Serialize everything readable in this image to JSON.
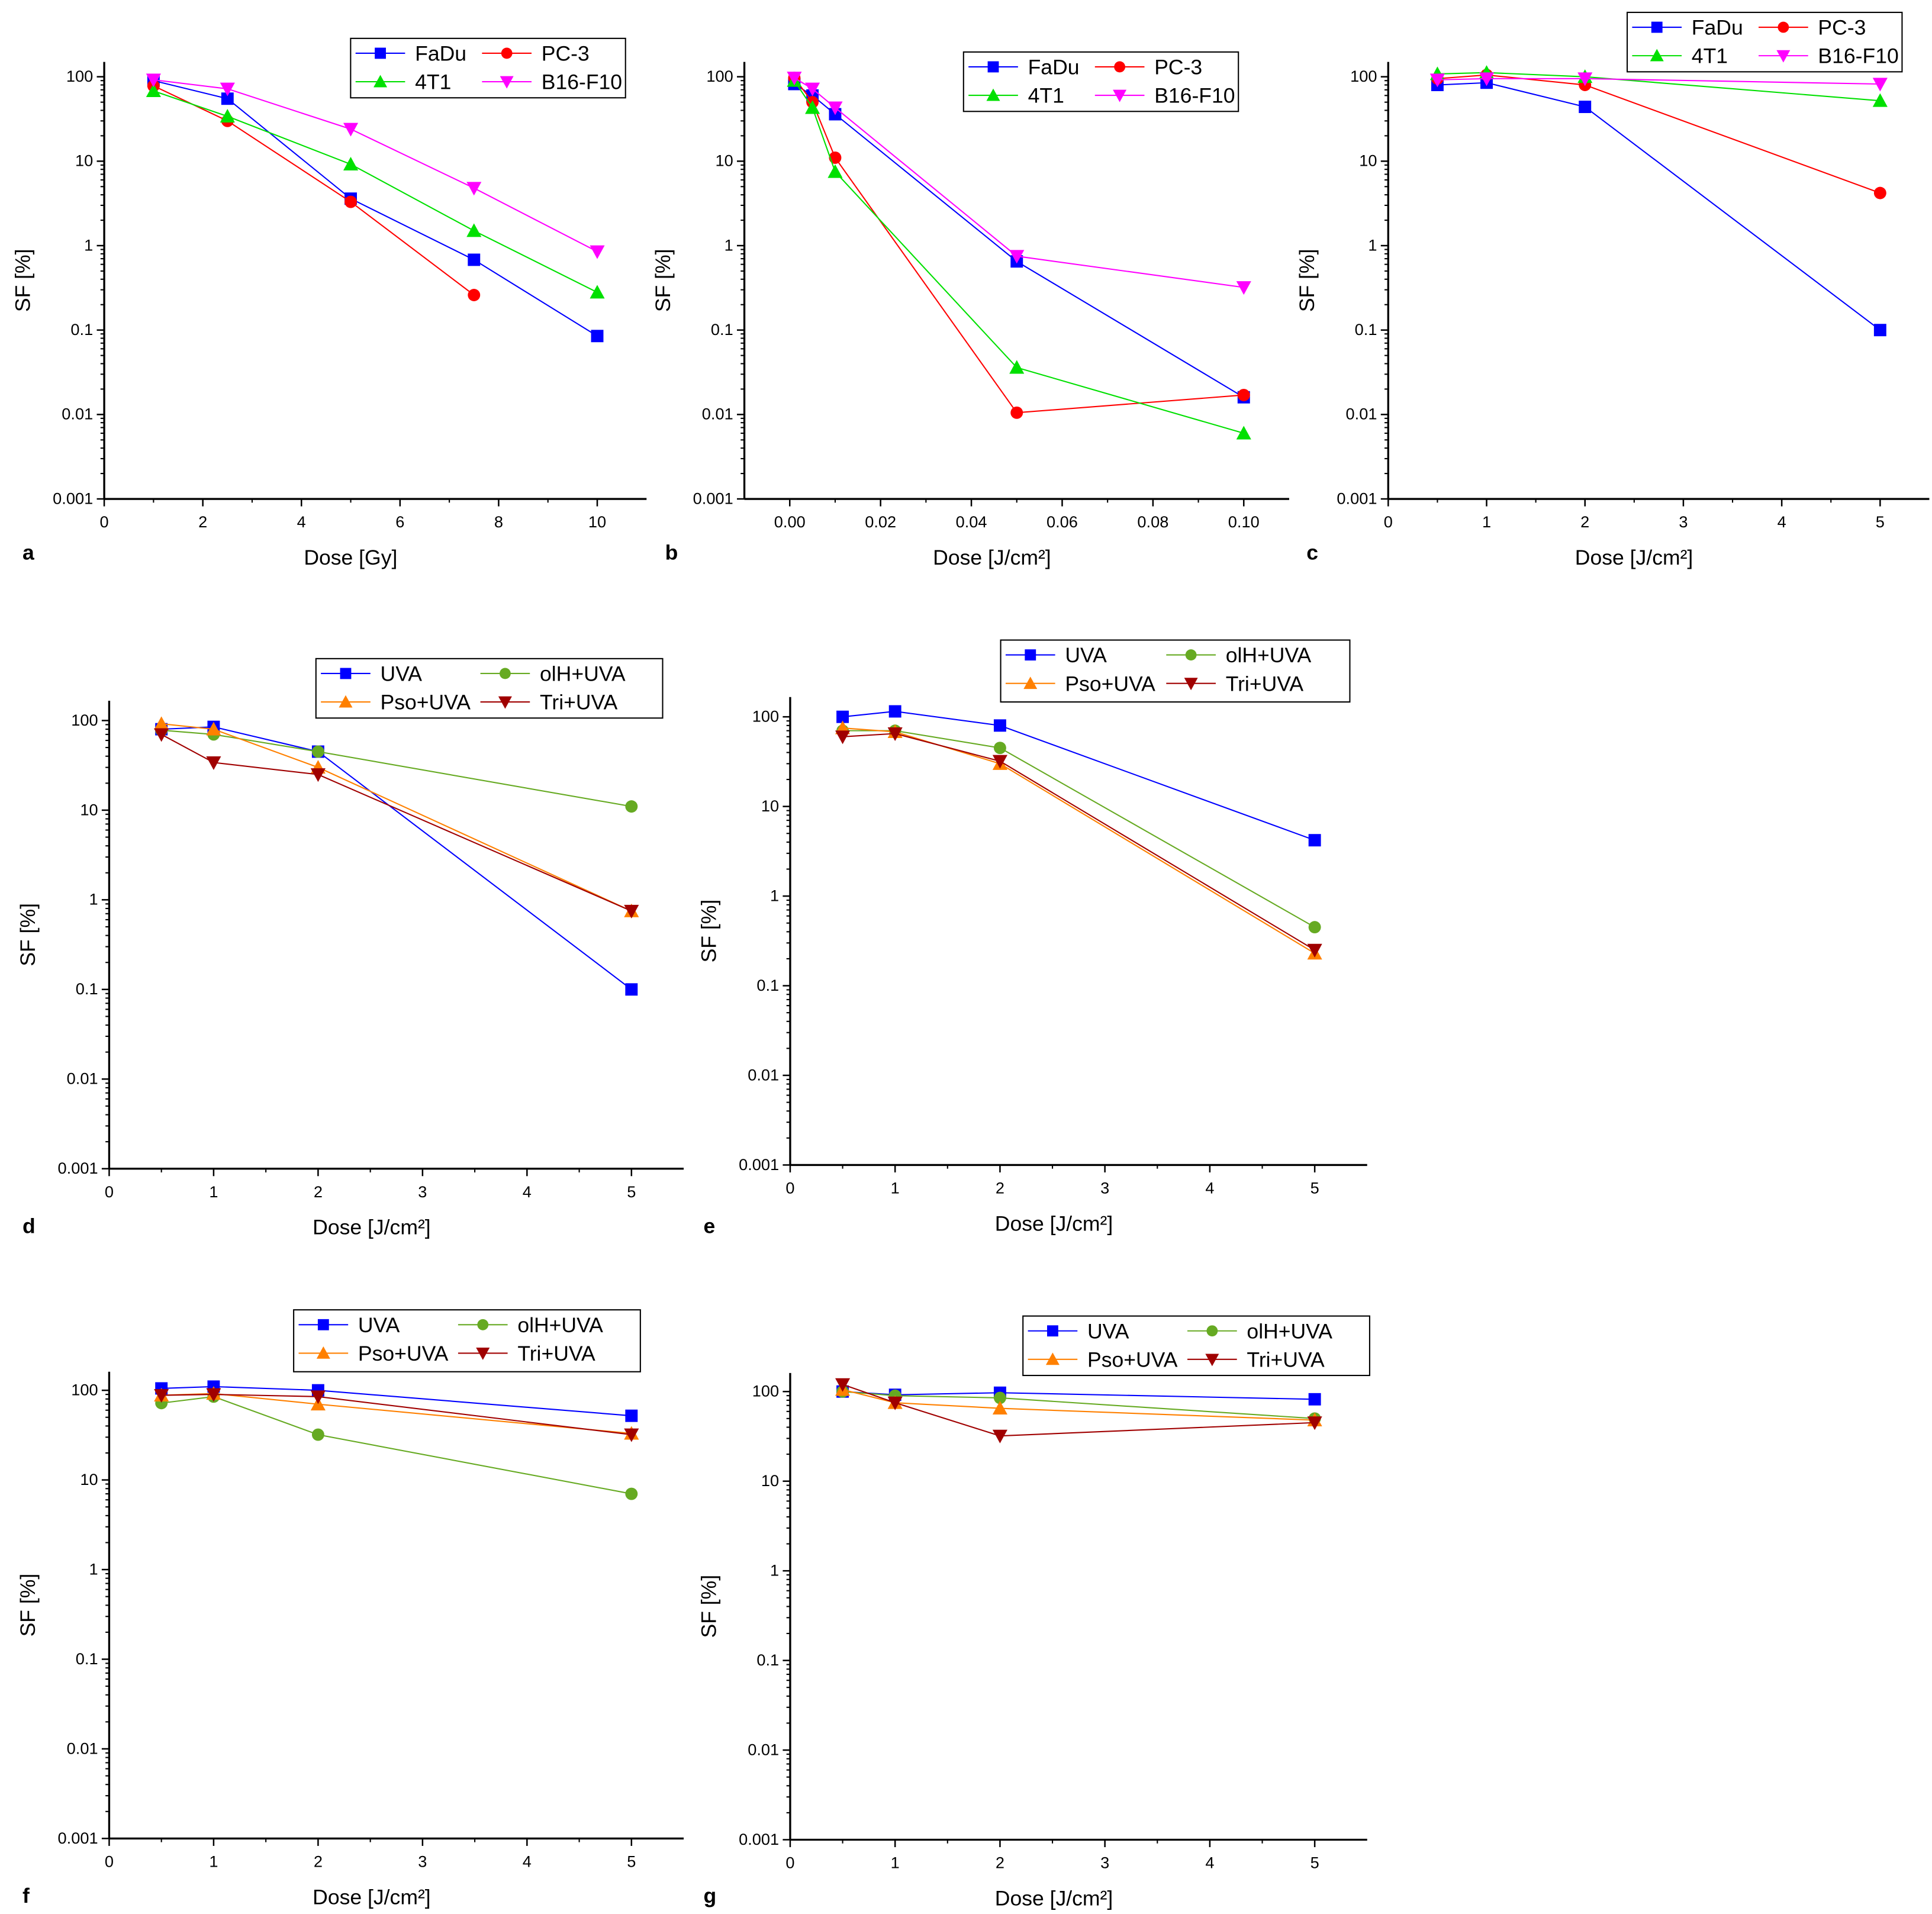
{
  "chart_data": [
    {
      "panel": "a",
      "type": "line",
      "xlabel": "Dose [Gy]",
      "ylabel": "SF [%]",
      "xscale": "linear",
      "yscale": "log",
      "xlim": [
        0,
        11
      ],
      "ylim": [
        0.001,
        160
      ],
      "xticks": [
        0,
        2,
        4,
        6,
        8,
        10
      ],
      "xtick_labels": [
        "0",
        "2",
        "4",
        "6",
        "8",
        "10"
      ],
      "yticks": [
        0.001,
        0.01,
        0.1,
        1,
        10,
        100
      ],
      "ytick_labels": [
        "0.001",
        "0.01",
        "0.1",
        "1",
        "10",
        "100"
      ],
      "legend": "top-right",
      "x": [
        1,
        2.5,
        5,
        7.5,
        10
      ],
      "series": [
        {
          "name": "FaDu",
          "color": "#0000ff",
          "marker": "square",
          "values": [
            90,
            55,
            3.6,
            0.68,
            0.085
          ]
        },
        {
          "name": "PC-3",
          "color": "#ff0000",
          "marker": "circle",
          "values": [
            78,
            30,
            3.3,
            0.26,
            null
          ]
        },
        {
          "name": "4T1",
          "color": "#00e000",
          "marker": "triangle-up",
          "values": [
            68,
            34,
            9.2,
            1.5,
            0.28
          ]
        },
        {
          "name": "B16-F10",
          "color": "#ff00ff",
          "marker": "triangle-down",
          "values": [
            92,
            72,
            24,
            4.8,
            0.85
          ]
        }
      ]
    },
    {
      "panel": "b",
      "type": "line",
      "xlabel": "Dose [J/cm²]",
      "ylabel": "SF [%]",
      "xscale": "linear",
      "yscale": "log",
      "xlim": [
        -0.01,
        0.11
      ],
      "ylim": [
        0.001,
        160
      ],
      "xticks": [
        0,
        0.02,
        0.04,
        0.06,
        0.08,
        0.1
      ],
      "xtick_labels": [
        "0.00",
        "0.02",
        "0.04",
        "0.06",
        "0.08",
        "0.10"
      ],
      "yticks": [
        0.001,
        0.01,
        0.1,
        1,
        10,
        100
      ],
      "ytick_labels": [
        "0.001",
        "0.01",
        "0.1",
        "1",
        "10",
        "100"
      ],
      "legend": "top-right",
      "x": [
        0.001,
        0.005,
        0.01,
        0.05,
        0.1
      ],
      "series": [
        {
          "name": "FaDu",
          "color": "#0000ff",
          "marker": "square",
          "values": [
            82,
            60,
            36,
            0.65,
            0.016
          ]
        },
        {
          "name": "PC-3",
          "color": "#ff0000",
          "marker": "circle",
          "values": [
            97,
            50,
            11,
            0.0105,
            0.017
          ]
        },
        {
          "name": "4T1",
          "color": "#00e000",
          "marker": "triangle-up",
          "values": [
            90,
            43,
            7.5,
            0.036,
            0.006
          ]
        },
        {
          "name": "B16-F10",
          "color": "#ff00ff",
          "marker": "triangle-down",
          "values": [
            97,
            72,
            43,
            0.75,
            0.32
          ]
        }
      ]
    },
    {
      "panel": "c",
      "type": "line",
      "xlabel": "Dose [J/cm²]",
      "ylabel": "SF [%]",
      "xscale": "linear",
      "yscale": "log",
      "xlim": [
        0,
        5.5
      ],
      "ylim": [
        0.001,
        160
      ],
      "xticks": [
        0,
        1,
        2,
        3,
        4,
        5
      ],
      "xtick_labels": [
        "0",
        "1",
        "2",
        "3",
        "4",
        "5"
      ],
      "yticks": [
        0.001,
        0.01,
        0.1,
        1,
        10,
        100
      ],
      "ytick_labels": [
        "0.001",
        "0.01",
        "0.1",
        "1",
        "10",
        "100"
      ],
      "legend": "top-right",
      "x": [
        0.5,
        1,
        2,
        5
      ],
      "series": [
        {
          "name": "FaDu",
          "color": "#0000ff",
          "marker": "square",
          "values": [
            80,
            85,
            44,
            0.1
          ]
        },
        {
          "name": "PC-3",
          "color": "#ff0000",
          "marker": "circle",
          "values": [
            95,
            105,
            80,
            4.2
          ]
        },
        {
          "name": "4T1",
          "color": "#00e000",
          "marker": "triangle-up",
          "values": [
            108,
            112,
            100,
            52
          ]
        },
        {
          "name": "B16-F10",
          "color": "#ff00ff",
          "marker": "triangle-down",
          "values": [
            92,
            95,
            95,
            82
          ]
        }
      ]
    },
    {
      "panel": "d",
      "type": "line",
      "xlabel": "Dose [J/cm²]",
      "ylabel": "SF [%]",
      "xscale": "linear",
      "yscale": "log",
      "xlim": [
        0,
        5.5
      ],
      "ylim": [
        0.001,
        160
      ],
      "xticks": [
        0,
        1,
        2,
        3,
        4,
        5
      ],
      "xtick_labels": [
        "0",
        "1",
        "2",
        "3",
        "4",
        "5"
      ],
      "yticks": [
        0.001,
        0.01,
        0.1,
        1,
        10,
        100
      ],
      "ytick_labels": [
        "0.001",
        "0.01",
        "0.1",
        "1",
        "10",
        "100"
      ],
      "legend": "top-right",
      "x": [
        0.5,
        1,
        2,
        5
      ],
      "series": [
        {
          "name": "UVA",
          "color": "#0000ff",
          "marker": "square",
          "values": [
            80,
            85,
            45,
            0.1
          ]
        },
        {
          "name": "olH+UVA",
          "color": "#66aa22",
          "marker": "circle",
          "values": [
            78,
            70,
            45,
            11
          ]
        },
        {
          "name": "Pso+UVA",
          "color": "#ff8000",
          "marker": "triangle-up",
          "values": [
            92,
            80,
            30,
            0.75
          ]
        },
        {
          "name": "Tri+UVA",
          "color": "#a00000",
          "marker": "triangle-down",
          "values": [
            70,
            34,
            25,
            0.75
          ]
        }
      ]
    },
    {
      "panel": "e",
      "type": "line",
      "xlabel": "Dose [J/cm²]",
      "ylabel": "SF [%]",
      "xscale": "linear",
      "yscale": "log",
      "xlim": [
        0,
        5.5
      ],
      "ylim": [
        0.001,
        160
      ],
      "xticks": [
        0,
        1,
        2,
        3,
        4,
        5
      ],
      "xtick_labels": [
        "0",
        "1",
        "2",
        "3",
        "4",
        "5"
      ],
      "yticks": [
        0.001,
        0.01,
        0.1,
        1,
        10,
        100
      ],
      "ytick_labels": [
        "0.001",
        "0.01",
        "0.1",
        "1",
        "10",
        "100"
      ],
      "legend": "top-right",
      "x": [
        0.5,
        1,
        2,
        5
      ],
      "series": [
        {
          "name": "UVA",
          "color": "#0000ff",
          "marker": "square",
          "values": [
            100,
            115,
            80,
            4.2
          ]
        },
        {
          "name": "olH+UVA",
          "color": "#66aa22",
          "marker": "circle",
          "values": [
            70,
            70,
            45,
            0.45
          ]
        },
        {
          "name": "Pso+UVA",
          "color": "#ff8000",
          "marker": "triangle-up",
          "values": [
            75,
            68,
            30,
            0.23
          ]
        },
        {
          "name": "Tri+UVA",
          "color": "#a00000",
          "marker": "triangle-down",
          "values": [
            60,
            65,
            32,
            0.25
          ]
        }
      ]
    },
    {
      "panel": "f",
      "type": "line",
      "xlabel": "Dose [J/cm²]",
      "ylabel": "SF [%]",
      "xscale": "linear",
      "yscale": "log",
      "xlim": [
        0,
        5.5
      ],
      "ylim": [
        0.001,
        160
      ],
      "xticks": [
        0,
        1,
        2,
        3,
        4,
        5
      ],
      "xtick_labels": [
        "0",
        "1",
        "2",
        "3",
        "4",
        "5"
      ],
      "yticks": [
        0.001,
        0.01,
        0.1,
        1,
        10,
        100
      ],
      "ytick_labels": [
        "0.001",
        "0.01",
        "0.1",
        "1",
        "10",
        "100"
      ],
      "legend": "top-right",
      "x": [
        0.5,
        1,
        2,
        5
      ],
      "series": [
        {
          "name": "UVA",
          "color": "#0000ff",
          "marker": "square",
          "values": [
            105,
            110,
            100,
            52
          ]
        },
        {
          "name": "olH+UVA",
          "color": "#66aa22",
          "marker": "circle",
          "values": [
            72,
            85,
            32,
            7
          ]
        },
        {
          "name": "Pso+UVA",
          "color": "#ff8000",
          "marker": "triangle-up",
          "values": [
            88,
            92,
            70,
            33
          ]
        },
        {
          "name": "Tri+UVA",
          "color": "#a00000",
          "marker": "triangle-down",
          "values": [
            88,
            90,
            85,
            32
          ]
        }
      ]
    },
    {
      "panel": "g",
      "type": "line",
      "xlabel": "Dose [J/cm²]",
      "ylabel": "SF [%]",
      "xscale": "linear",
      "yscale": "log",
      "xlim": [
        0,
        5.5
      ],
      "ylim": [
        0.001,
        160
      ],
      "xticks": [
        0,
        1,
        2,
        3,
        4,
        5
      ],
      "xtick_labels": [
        "0",
        "1",
        "2",
        "3",
        "4",
        "5"
      ],
      "yticks": [
        0.001,
        0.01,
        0.1,
        1,
        10,
        100
      ],
      "ytick_labels": [
        "0.001",
        "0.01",
        "0.1",
        "1",
        "10",
        "100"
      ],
      "legend": "top-right",
      "x": [
        0.5,
        1,
        2,
        5
      ],
      "series": [
        {
          "name": "UVA",
          "color": "#0000ff",
          "marker": "square",
          "values": [
            100,
            92,
            97,
            82
          ]
        },
        {
          "name": "olH+UVA",
          "color": "#66aa22",
          "marker": "circle",
          "values": [
            100,
            90,
            85,
            50
          ]
        },
        {
          "name": "Pso+UVA",
          "color": "#ff8000",
          "marker": "triangle-up",
          "values": [
            105,
            75,
            65,
            48
          ]
        },
        {
          "name": "Tri+UVA",
          "color": "#a00000",
          "marker": "triangle-down",
          "values": [
            120,
            75,
            32,
            45
          ]
        }
      ]
    }
  ]
}
